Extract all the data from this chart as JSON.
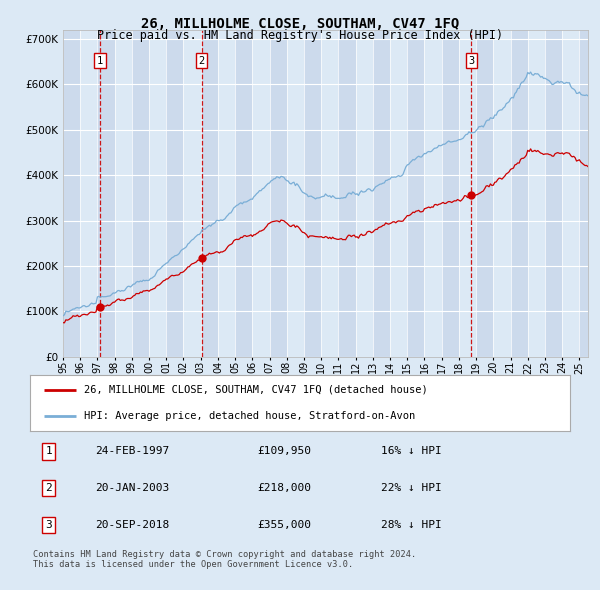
{
  "title": "26, MILLHOLME CLOSE, SOUTHAM, CV47 1FQ",
  "subtitle": "Price paid vs. HM Land Registry's House Price Index (HPI)",
  "xmin": 1995.0,
  "xmax": 2025.5,
  "ymin": 0,
  "ymax": 720000,
  "yticks": [
    0,
    100000,
    200000,
    300000,
    400000,
    500000,
    600000,
    700000
  ],
  "ytick_labels": [
    "£0",
    "£100K",
    "£200K",
    "£300K",
    "£400K",
    "£500K",
    "£600K",
    "£700K"
  ],
  "sale_dates": [
    1997.14,
    2003.055,
    2018.72
  ],
  "sale_prices": [
    109950,
    218000,
    355000
  ],
  "sale_numbers": [
    "1",
    "2",
    "3"
  ],
  "legend_red": "26, MILLHOLME CLOSE, SOUTHAM, CV47 1FQ (detached house)",
  "legend_blue": "HPI: Average price, detached house, Stratford-on-Avon",
  "table_rows": [
    [
      "1",
      "24-FEB-1997",
      "£109,950",
      "16% ↓ HPI"
    ],
    [
      "2",
      "20-JAN-2003",
      "£218,000",
      "22% ↓ HPI"
    ],
    [
      "3",
      "20-SEP-2018",
      "£355,000",
      "28% ↓ HPI"
    ]
  ],
  "footer": "Contains HM Land Registry data © Crown copyright and database right 2024.\nThis data is licensed under the Open Government Licence v3.0.",
  "background_color": "#dce9f5",
  "plot_bg": "#dce9f5",
  "red_color": "#cc0000",
  "blue_color": "#7aaed6",
  "dashed_color": "#cc0000"
}
